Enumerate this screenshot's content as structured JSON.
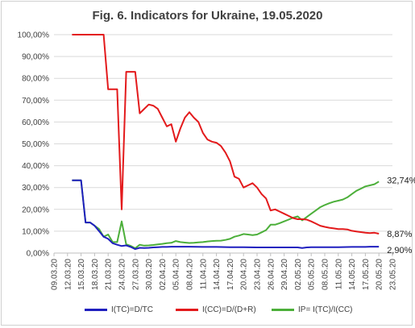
{
  "chart_data": {
    "type": "line",
    "title": "Fig. 6. Indicators for Ukraine, 19.05.2020",
    "xlabel": "",
    "ylabel": "",
    "x_tick_labels": [
      "09.03.20",
      "12.03.20",
      "15.03.20",
      "18.03.20",
      "21.03.20",
      "24.03.20",
      "27.03.20",
      "30.03.20",
      "02.04.20",
      "05.04.20",
      "08.04.20",
      "11.04.20",
      "14.04.20",
      "17.04.20",
      "20.04.20",
      "23.04.20",
      "26.04.20",
      "29.04.20",
      "02.05.20",
      "05.05.20",
      "08.05.20",
      "11.05.20",
      "14.05.20",
      "17.05.20",
      "20.05.20",
      "23.05.20"
    ],
    "y_tick_labels": [
      "0,00%",
      "10,00%",
      "20,00%",
      "30,00%",
      "40,00%",
      "50,00%",
      "60,00%",
      "70,00%",
      "80,00%",
      "90,00%",
      "100,00%"
    ],
    "ylim": [
      0,
      100
    ],
    "x_first_date": "09.03.20",
    "x_last_date": "23.05.20",
    "grid": "horizontal",
    "legend_position": "bottom",
    "series": [
      {
        "name": "I(TC)=D/TC",
        "color": "#1f1fbf",
        "end_label": "2,90%",
        "points": [
          [
            "13.03.20",
            33.3
          ],
          [
            "14.03.20",
            33.3
          ],
          [
            "15.03.20",
            33.3
          ],
          [
            "16.03.20",
            14.0
          ],
          [
            "17.03.20",
            14.0
          ],
          [
            "18.03.20",
            12.5
          ],
          [
            "19.03.20",
            10.0
          ],
          [
            "20.03.20",
            7.5
          ],
          [
            "21.03.20",
            6.5
          ],
          [
            "22.03.20",
            4.5
          ],
          [
            "23.03.20",
            3.8
          ],
          [
            "24.03.20",
            3.2
          ],
          [
            "25.03.20",
            3.5
          ],
          [
            "26.03.20",
            2.8
          ],
          [
            "27.03.20",
            1.8
          ],
          [
            "28.03.20",
            2.4
          ],
          [
            "29.03.20",
            2.3
          ],
          [
            "30.03.20",
            2.4
          ],
          [
            "31.03.20",
            2.6
          ],
          [
            "01.04.20",
            2.7
          ],
          [
            "02.04.20",
            2.8
          ],
          [
            "03.04.20",
            2.8
          ],
          [
            "04.04.20",
            2.9
          ],
          [
            "05.04.20",
            2.9
          ],
          [
            "06.04.20",
            2.9
          ],
          [
            "08.04.20",
            2.9
          ],
          [
            "11.04.20",
            2.8
          ],
          [
            "14.04.20",
            2.8
          ],
          [
            "17.04.20",
            2.7
          ],
          [
            "20.04.20",
            2.7
          ],
          [
            "23.04.20",
            2.6
          ],
          [
            "26.04.20",
            2.6
          ],
          [
            "29.04.20",
            2.6
          ],
          [
            "01.05.20",
            2.6
          ],
          [
            "02.05.20",
            2.6
          ],
          [
            "03.05.20",
            2.3
          ],
          [
            "04.05.20",
            2.6
          ],
          [
            "05.05.20",
            2.7
          ],
          [
            "08.05.20",
            2.7
          ],
          [
            "11.05.20",
            2.7
          ],
          [
            "14.05.20",
            2.8
          ],
          [
            "17.05.20",
            2.8
          ],
          [
            "18.05.20",
            2.9
          ],
          [
            "19.05.20",
            2.9
          ],
          [
            "20.05.20",
            2.9
          ]
        ]
      },
      {
        "name": "I(CC)=D/(D+R)",
        "color": "#e31a1c",
        "end_label": "8,87%",
        "points": [
          [
            "13.03.20",
            100
          ],
          [
            "14.03.20",
            100
          ],
          [
            "15.03.20",
            100
          ],
          [
            "16.03.20",
            100
          ],
          [
            "17.03.20",
            100
          ],
          [
            "18.03.20",
            100
          ],
          [
            "19.03.20",
            100
          ],
          [
            "20.03.20",
            100
          ],
          [
            "21.03.20",
            75
          ],
          [
            "22.03.20",
            75
          ],
          [
            "23.03.20",
            75
          ],
          [
            "24.03.20",
            20
          ],
          [
            "25.03.20",
            83
          ],
          [
            "26.03.20",
            83
          ],
          [
            "27.03.20",
            83
          ],
          [
            "28.03.20",
            64
          ],
          [
            "29.03.20",
            66
          ],
          [
            "30.03.20",
            68
          ],
          [
            "31.03.20",
            67.5
          ],
          [
            "01.04.20",
            66
          ],
          [
            "02.04.20",
            62
          ],
          [
            "03.04.20",
            58
          ],
          [
            "04.04.20",
            59
          ],
          [
            "05.04.20",
            51
          ],
          [
            "06.04.20",
            57
          ],
          [
            "07.04.20",
            62
          ],
          [
            "08.04.20",
            64.5
          ],
          [
            "09.04.20",
            62
          ],
          [
            "10.04.20",
            60
          ],
          [
            "11.04.20",
            55
          ],
          [
            "12.04.20",
            52
          ],
          [
            "13.04.20",
            51
          ],
          [
            "14.04.20",
            50.5
          ],
          [
            "15.04.20",
            49
          ],
          [
            "16.04.20",
            46
          ],
          [
            "17.04.20",
            42
          ],
          [
            "18.04.20",
            35
          ],
          [
            "19.04.20",
            34
          ],
          [
            "20.04.20",
            30
          ],
          [
            "21.04.20",
            31
          ],
          [
            "22.04.20",
            32
          ],
          [
            "23.04.20",
            30
          ],
          [
            "24.04.20",
            27
          ],
          [
            "25.04.20",
            25
          ],
          [
            "26.04.20",
            19.5
          ],
          [
            "27.04.20",
            20
          ],
          [
            "28.04.20",
            19
          ],
          [
            "29.04.20",
            18
          ],
          [
            "30.04.20",
            17
          ],
          [
            "01.05.20",
            16
          ],
          [
            "02.05.20",
            15.5
          ],
          [
            "03.05.20",
            15.5
          ],
          [
            "04.05.20",
            15.3
          ],
          [
            "05.05.20",
            14.5
          ],
          [
            "06.05.20",
            13.5
          ],
          [
            "07.05.20",
            12.5
          ],
          [
            "08.05.20",
            12
          ],
          [
            "09.05.20",
            11.6
          ],
          [
            "10.05.20",
            11.3
          ],
          [
            "11.05.20",
            11
          ],
          [
            "12.05.20",
            11
          ],
          [
            "13.05.20",
            10.8
          ],
          [
            "14.05.20",
            10.2
          ],
          [
            "15.05.20",
            9.9
          ],
          [
            "16.05.20",
            9.6
          ],
          [
            "17.05.20",
            9.3
          ],
          [
            "18.05.20",
            9.1
          ],
          [
            "19.05.20",
            9.3
          ],
          [
            "20.05.20",
            8.87
          ]
        ]
      },
      {
        "name": "IP= I(TC)/I(CC)",
        "color": "#4caf3a",
        "end_label": "32,74%",
        "points": [
          [
            "13.03.20",
            33.3
          ],
          [
            "14.03.20",
            33.3
          ],
          [
            "15.03.20",
            33.3
          ],
          [
            "16.03.20",
            14.0
          ],
          [
            "17.03.20",
            14.0
          ],
          [
            "18.03.20",
            12.5
          ],
          [
            "19.03.20",
            11.0
          ],
          [
            "20.03.20",
            7.5
          ],
          [
            "21.03.20",
            8.5
          ],
          [
            "22.03.20",
            5.0
          ],
          [
            "23.03.20",
            5.0
          ],
          [
            "24.03.20",
            14.5
          ],
          [
            "25.03.20",
            4.0
          ],
          [
            "26.03.20",
            3.3
          ],
          [
            "27.03.20",
            2.2
          ],
          [
            "28.03.20",
            3.8
          ],
          [
            "29.03.20",
            3.4
          ],
          [
            "30.03.20",
            3.5
          ],
          [
            "31.03.20",
            3.7
          ],
          [
            "01.04.20",
            4.0
          ],
          [
            "02.04.20",
            4.2
          ],
          [
            "03.04.20",
            4.5
          ],
          [
            "04.04.20",
            4.7
          ],
          [
            "05.04.20",
            5.5
          ],
          [
            "06.04.20",
            5.0
          ],
          [
            "07.04.20",
            4.8
          ],
          [
            "08.04.20",
            4.6
          ],
          [
            "09.04.20",
            4.7
          ],
          [
            "10.04.20",
            4.9
          ],
          [
            "11.04.20",
            5.0
          ],
          [
            "12.04.20",
            5.3
          ],
          [
            "13.04.20",
            5.5
          ],
          [
            "14.04.20",
            5.6
          ],
          [
            "15.04.20",
            5.7
          ],
          [
            "16.04.20",
            6.0
          ],
          [
            "17.04.20",
            6.5
          ],
          [
            "18.04.20",
            7.5
          ],
          [
            "19.04.20",
            8.0
          ],
          [
            "20.04.20",
            8.7
          ],
          [
            "21.04.20",
            8.5
          ],
          [
            "22.04.20",
            8.2
          ],
          [
            "23.04.20",
            8.5
          ],
          [
            "24.04.20",
            9.5
          ],
          [
            "25.04.20",
            10.5
          ],
          [
            "26.04.20",
            13.0
          ],
          [
            "27.04.20",
            13.0
          ],
          [
            "28.04.20",
            13.7
          ],
          [
            "29.04.20",
            14.5
          ],
          [
            "30.04.20",
            15.3
          ],
          [
            "01.05.20",
            16.2
          ],
          [
            "02.05.20",
            16.8
          ],
          [
            "03.05.20",
            15.0
          ],
          [
            "04.05.20",
            16.5
          ],
          [
            "05.05.20",
            18.0
          ],
          [
            "06.05.20",
            19.5
          ],
          [
            "07.05.20",
            21.0
          ],
          [
            "08.05.20",
            22.0
          ],
          [
            "09.05.20",
            22.8
          ],
          [
            "10.05.20",
            23.5
          ],
          [
            "11.05.20",
            24.0
          ],
          [
            "12.05.20",
            24.5
          ],
          [
            "13.05.20",
            25.5
          ],
          [
            "14.05.20",
            27.0
          ],
          [
            "15.05.20",
            28.5
          ],
          [
            "16.05.20",
            29.5
          ],
          [
            "17.05.20",
            30.5
          ],
          [
            "18.05.20",
            31.0
          ],
          [
            "19.05.20",
            31.5
          ],
          [
            "20.05.20",
            32.74
          ]
        ]
      }
    ]
  }
}
